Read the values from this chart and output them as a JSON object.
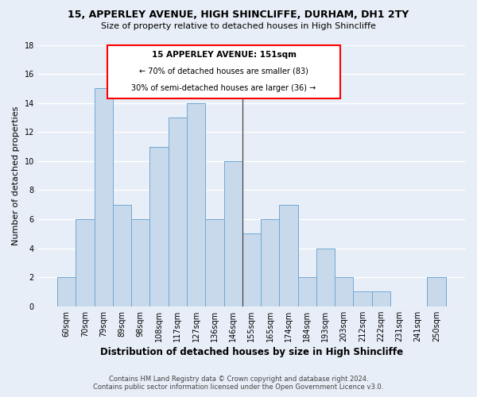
{
  "title": "15, APPERLEY AVENUE, HIGH SHINCLIFFE, DURHAM, DH1 2TY",
  "subtitle": "Size of property relative to detached houses in High Shincliffe",
  "categories": [
    "60sqm",
    "70sqm",
    "79sqm",
    "89sqm",
    "98sqm",
    "108sqm",
    "117sqm",
    "127sqm",
    "136sqm",
    "146sqm",
    "155sqm",
    "165sqm",
    "174sqm",
    "184sqm",
    "193sqm",
    "203sqm",
    "212sqm",
    "222sqm",
    "231sqm",
    "241sqm",
    "250sqm"
  ],
  "values": [
    2,
    6,
    15,
    7,
    6,
    11,
    13,
    14,
    6,
    10,
    5,
    6,
    7,
    2,
    4,
    2,
    1,
    1,
    0,
    0,
    2
  ],
  "bar_color": "#c9d9ec",
  "bar_edge_color": "#6fa8d4",
  "background_color": "#e8eef7",
  "ylabel": "Number of detached properties",
  "xlabel": "Distribution of detached houses by size in High Shincliffe",
  "ylim": [
    0,
    18
  ],
  "yticks": [
    0,
    2,
    4,
    6,
    8,
    10,
    12,
    14,
    16,
    18
  ],
  "annotation_title": "15 APPERLEY AVENUE: 151sqm",
  "annotation_line1": "← 70% of detached houses are smaller (83)",
  "annotation_line2": "30% of semi-detached houses are larger (36) →",
  "footer1": "Contains HM Land Registry data © Crown copyright and database right 2024.",
  "footer2": "Contains public sector information licensed under the Open Government Licence v3.0.",
  "grid_color": "#ffffff",
  "title_fontsize": 9,
  "subtitle_fontsize": 8,
  "ylabel_fontsize": 8,
  "xlabel_fontsize": 8.5,
  "tick_fontsize": 7,
  "annotation_fontsize_title": 7.5,
  "annotation_fontsize_body": 7,
  "footer_fontsize": 6
}
